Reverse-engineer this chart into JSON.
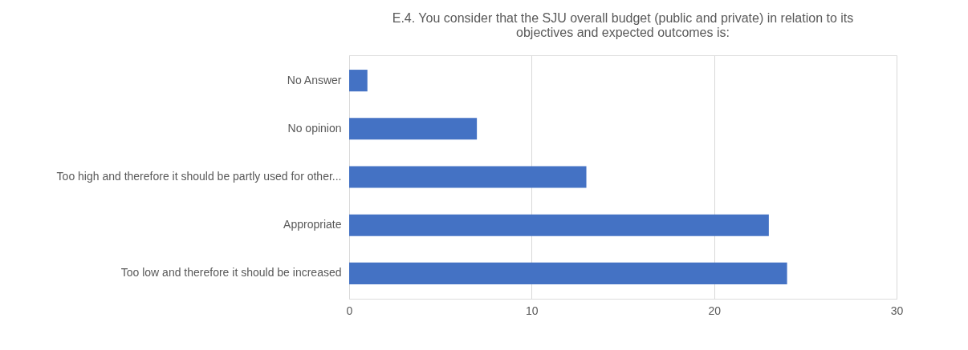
{
  "chart_data": {
    "type": "bar",
    "orientation": "horizontal",
    "title": [
      "E.4. You consider that the SJU overall budget (public and private) in relation to its",
      "objectives and expected  outcomes is:"
    ],
    "categories": [
      "No Answer",
      "No opinion",
      "Too high and therefore it should be partly used for other...",
      "Appropriate",
      "Too low and therefore it should be increased"
    ],
    "values": [
      1,
      7,
      13,
      23,
      24
    ],
    "color": "#4472c4",
    "xlim": [
      0,
      30
    ],
    "xticks": [
      0,
      10,
      20,
      30
    ],
    "grid": "x"
  }
}
